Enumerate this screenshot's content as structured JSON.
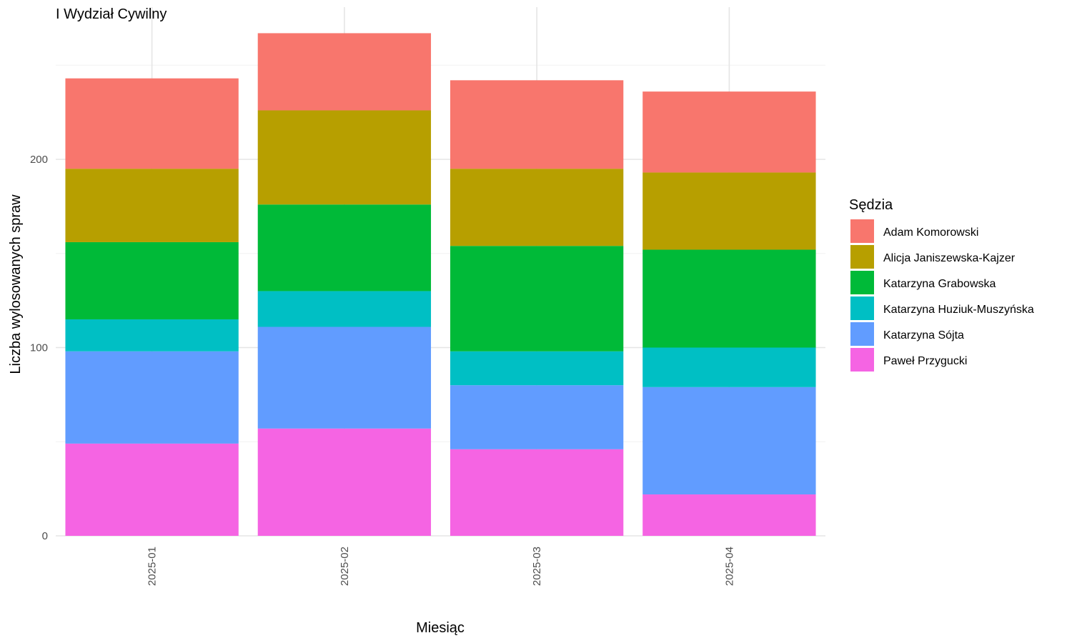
{
  "chart_data": {
    "type": "bar",
    "stacked": true,
    "title": "I Wydział Cywilny",
    "xlabel": "Miesiąc",
    "ylabel": "Liczba wylosowanych spraw",
    "legend_title": "Sędzia",
    "legend_position": "right",
    "grid": true,
    "ylim": [
      0,
      275
    ],
    "yticks": [
      0,
      100,
      200
    ],
    "categories": [
      "2025-01",
      "2025-02",
      "2025-03",
      "2025-04"
    ],
    "series": [
      {
        "name": "Adam Komorowski",
        "color": "#F8766D",
        "values": [
          48,
          41,
          47,
          43
        ]
      },
      {
        "name": "Alicja Janiszewska-Kajzer",
        "color": "#B79F00",
        "values": [
          39,
          50,
          41,
          41
        ]
      },
      {
        "name": "Katarzyna Grabowska",
        "color": "#00BA38",
        "values": [
          41,
          46,
          56,
          52
        ]
      },
      {
        "name": "Katarzyna Huziuk-Muszyńska",
        "color": "#00BFC4",
        "values": [
          17,
          19,
          18,
          21
        ]
      },
      {
        "name": "Katarzyna Sójta",
        "color": "#619CFF",
        "values": [
          49,
          54,
          34,
          57
        ]
      },
      {
        "name": "Paweł Przygucki",
        "color": "#F564E3",
        "values": [
          49,
          57,
          46,
          22
        ]
      }
    ]
  }
}
